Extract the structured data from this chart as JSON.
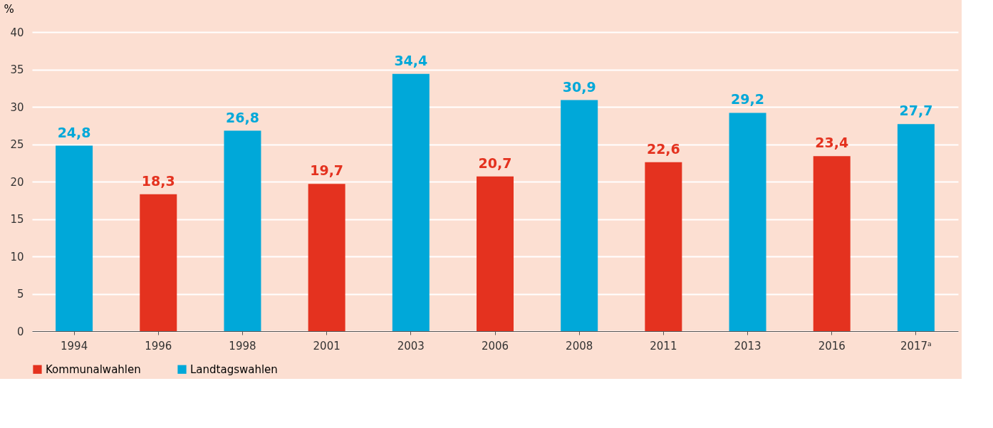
{
  "chart_data": {
    "type": "bar",
    "ylabel": "%",
    "categories": [
      "1994",
      "1996",
      "1998",
      "2001",
      "2003",
      "2006",
      "2008",
      "2011",
      "2013",
      "2016",
      "2017ᵃ"
    ],
    "series": [
      {
        "name": "Kommunalwahlen",
        "color": "#e4321f",
        "values": [
          null,
          18.3,
          null,
          19.7,
          null,
          20.7,
          null,
          22.6,
          null,
          23.4,
          null
        ],
        "value_labels": [
          null,
          "18,3",
          null,
          "19,7",
          null,
          "20,7",
          null,
          "22,6",
          null,
          "23,4",
          null
        ]
      },
      {
        "name": "Landtagswahlen",
        "color": "#00a8d9",
        "values": [
          24.8,
          null,
          26.8,
          null,
          34.4,
          null,
          30.9,
          null,
          29.2,
          null,
          27.7
        ],
        "value_labels": [
          "24,8",
          null,
          "26,8",
          null,
          "34,4",
          null,
          "30,9",
          null,
          "29,2",
          null,
          "27,7"
        ]
      }
    ],
    "ylim": [
      0,
      40
    ],
    "yticks": [
      0,
      5,
      10,
      15,
      20,
      25,
      30,
      35,
      40
    ],
    "grid": "y",
    "legend": "bottom"
  }
}
